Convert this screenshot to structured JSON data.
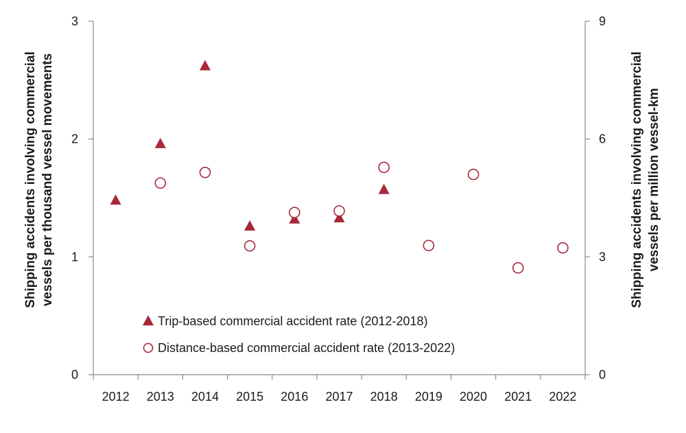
{
  "chart_data": {
    "type": "scatter",
    "title": "",
    "categories": [
      "2012",
      "2013",
      "2014",
      "2015",
      "2016",
      "2017",
      "2018",
      "2019",
      "2020",
      "2021",
      "2022"
    ],
    "y_left": {
      "label_lines": [
        "Shipping accidents involving commercial",
        "vessels per thousand vessel movements"
      ],
      "ylim": [
        0,
        3
      ],
      "ticks": [
        0,
        1,
        2,
        3
      ]
    },
    "y_right": {
      "label_lines": [
        "Shipping accidents involving commercial",
        "vessels per million vessel-km"
      ],
      "ylim": [
        0,
        9
      ],
      "ticks": [
        0,
        3,
        6,
        9
      ]
    },
    "series": [
      {
        "name": "Trip-based commercial accident rate (2012-2018)",
        "axis": "left",
        "marker": "filled-triangle",
        "color": "#a8283a",
        "values": [
          1.48,
          1.96,
          2.62,
          1.26,
          1.32,
          1.33,
          1.57,
          null,
          null,
          null,
          null
        ]
      },
      {
        "name": "Distance-based commercial accident rate (2013-2022)",
        "axis": "right",
        "marker": "open-circle",
        "color": "#a8283a",
        "values": [
          null,
          4.88,
          5.15,
          3.28,
          4.13,
          4.17,
          5.28,
          3.29,
          5.1,
          2.72,
          3.23
        ]
      }
    ],
    "legend_position": "lower-left-inside",
    "grid": false
  }
}
